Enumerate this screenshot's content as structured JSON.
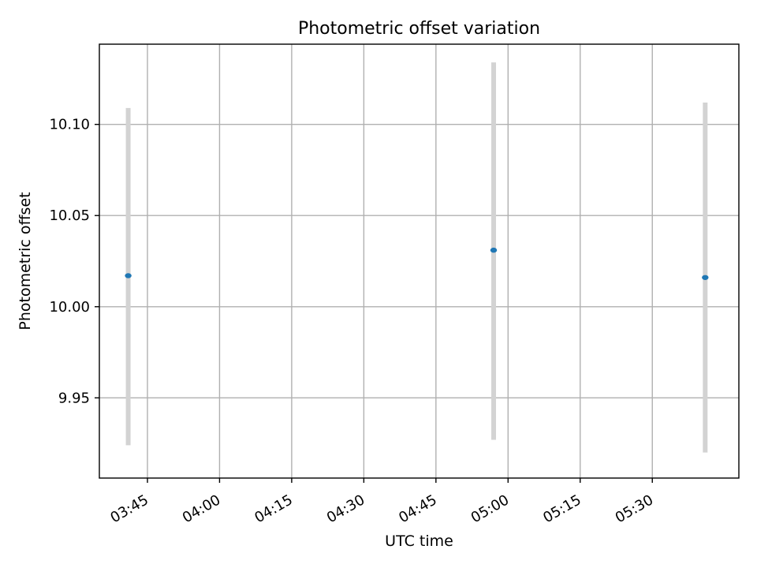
{
  "chart_data": {
    "type": "scatter",
    "title": "Photometric offset variation",
    "xlabel": "UTC time",
    "ylabel": "Photometric offset",
    "x_axis_kind": "time",
    "xlim": [
      "03:35",
      "05:48"
    ],
    "ylim": [
      9.906,
      10.144
    ],
    "x_ticks": [
      "03:45",
      "04:00",
      "04:15",
      "04:30",
      "04:45",
      "05:00",
      "05:15",
      "05:30"
    ],
    "y_ticks": [
      9.95,
      10.0,
      10.05,
      10.1
    ],
    "y_tick_labels": [
      "9.95",
      "10.00",
      "10.05",
      "10.10"
    ],
    "grid": true,
    "series": [
      {
        "x": [
          "03:41",
          "04:57",
          "05:41"
        ],
        "y": [
          10.017,
          10.031,
          10.016
        ],
        "yerr_low": [
          9.924,
          9.927,
          9.92
        ],
        "yerr_high": [
          10.109,
          10.134,
          10.112
        ]
      }
    ],
    "colors": {
      "point": "#1f77b4",
      "errorbar": "#d3d3d3",
      "grid": "#b0b0b0",
      "axes": "#000000"
    }
  }
}
